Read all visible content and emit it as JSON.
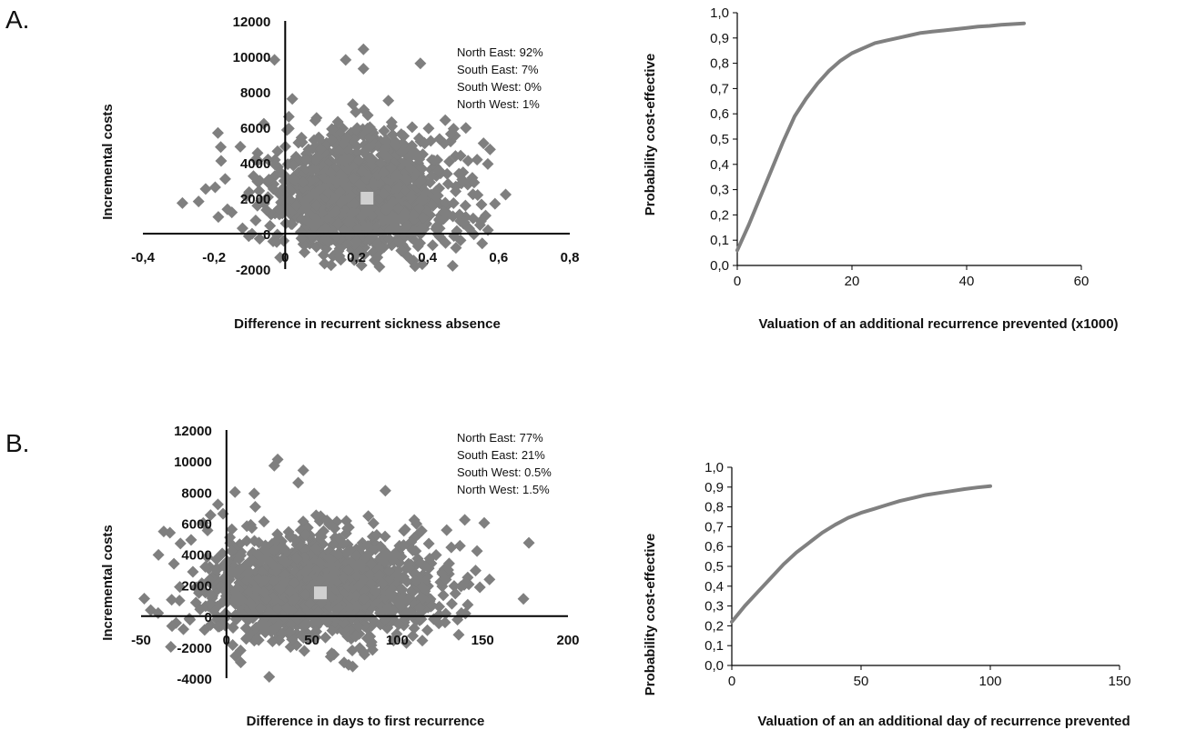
{
  "panels": [
    {
      "label": "A."
    },
    {
      "label": "B."
    }
  ],
  "colors": {
    "points": "#7f7f7f",
    "mean": "#d0d0d0",
    "curve": "#808080",
    "axis": "#000000"
  },
  "chart_data": [
    {
      "id": "A-scatter",
      "type": "scatter",
      "title": "",
      "xlabel": "Difference in recurrent sickness absence",
      "ylabel": "Incremental costs",
      "xlim": [
        -0.4,
        0.8
      ],
      "ylim": [
        -2000,
        12000
      ],
      "xticks": [
        "-0,4",
        "-0,2",
        "0",
        "0,2",
        "0,4",
        "0,6",
        "0,8"
      ],
      "xtick_values": [
        -0.4,
        -0.2,
        0,
        0.2,
        0.4,
        0.6,
        0.8
      ],
      "yticks": [
        "-2000",
        "0",
        "2000",
        "4000",
        "6000",
        "8000",
        "10000",
        "12000"
      ],
      "ytick_values": [
        -2000,
        0,
        2000,
        4000,
        6000,
        8000,
        10000,
        12000
      ],
      "cloud": {
        "center": [
          0.22,
          2200
        ],
        "spread": [
          0.13,
          1700
        ],
        "n": 1400
      },
      "outliers": [
        [
          -0.03,
          9800
        ],
        [
          0.22,
          10400
        ],
        [
          0.38,
          9600
        ],
        [
          0.17,
          9800
        ],
        [
          0.22,
          9300
        ],
        [
          0.02,
          7600
        ],
        [
          0.29,
          7500
        ],
        [
          -0.06,
          6200
        ],
        [
          0.45,
          6400
        ],
        [
          -0.18,
          4100
        ],
        [
          0.55,
          700
        ],
        [
          0.57,
          200
        ],
        [
          -0.15,
          1200
        ],
        [
          -0.12,
          300
        ],
        [
          0.48,
          -800
        ]
      ],
      "mean_point": [
        0.23,
        2000
      ],
      "legend": [
        "North East: 92%",
        "South East: 7%",
        "South West: 0%",
        "North West: 1%"
      ]
    },
    {
      "id": "A-ceac",
      "type": "line",
      "title": "",
      "xlabel": "Valuation of an additional recurrence prevented (x1000)",
      "ylabel": "Probability cost-effective",
      "xlim": [
        0,
        60
      ],
      "ylim": [
        0,
        1
      ],
      "xticks": [
        "0",
        "20",
        "40",
        "60"
      ],
      "xtick_values": [
        0,
        20,
        40,
        60
      ],
      "yticks": [
        "0,0",
        "0,1",
        "0,2",
        "0,3",
        "0,4",
        "0,5",
        "0,6",
        "0,7",
        "0,8",
        "0,9",
        "1,0"
      ],
      "ytick_values": [
        0,
        0.1,
        0.2,
        0.3,
        0.4,
        0.5,
        0.6,
        0.7,
        0.8,
        0.9,
        1.0
      ],
      "x": [
        0,
        2,
        4,
        6,
        8,
        10,
        12,
        14,
        16,
        18,
        20,
        22,
        24,
        26,
        28,
        30,
        32,
        34,
        36,
        38,
        40,
        42,
        44,
        46,
        48,
        50
      ],
      "y": [
        0.06,
        0.16,
        0.27,
        0.38,
        0.49,
        0.59,
        0.66,
        0.72,
        0.77,
        0.81,
        0.84,
        0.86,
        0.88,
        0.89,
        0.9,
        0.91,
        0.92,
        0.925,
        0.93,
        0.935,
        0.94,
        0.945,
        0.948,
        0.952,
        0.955,
        0.958
      ]
    },
    {
      "id": "B-scatter",
      "type": "scatter",
      "title": "",
      "xlabel": "Difference in days to first recurrence",
      "ylabel": "Incremental costs",
      "xlim": [
        -50,
        200
      ],
      "ylim": [
        -4000,
        12000
      ],
      "xticks": [
        "-50",
        "0",
        "50",
        "100",
        "150",
        "200"
      ],
      "xtick_values": [
        -50,
        0,
        50,
        100,
        150,
        200
      ],
      "yticks": [
        "-4000",
        "-2000",
        "0",
        "2000",
        "4000",
        "6000",
        "8000",
        "10000",
        "12000"
      ],
      "ytick_values": [
        -4000,
        -2000,
        0,
        2000,
        4000,
        6000,
        8000,
        10000,
        12000
      ],
      "cloud": {
        "center": [
          57,
          1900
        ],
        "spread": [
          36,
          1700
        ],
        "n": 1400
      },
      "outliers": [
        [
          30,
          10100
        ],
        [
          28,
          9700
        ],
        [
          45,
          9400
        ],
        [
          42,
          8600
        ],
        [
          -5,
          7200
        ],
        [
          5,
          8000
        ],
        [
          -40,
          200
        ],
        [
          110,
          6200
        ],
        [
          -2,
          6600
        ],
        [
          132,
          800
        ],
        [
          128,
          -400
        ],
        [
          136,
          -1200
        ],
        [
          12,
          -1400
        ]
      ],
      "mean_point": [
        55,
        1500
      ],
      "legend": [
        "North East: 77%",
        "South East: 21%",
        "South West: 0.5%",
        "North West: 1.5%"
      ]
    },
    {
      "id": "B-ceac",
      "type": "line",
      "title": "",
      "xlabel": "Valuation of an an additional day of recurrence prevented",
      "ylabel": "Probability cost-effective",
      "xlim": [
        0,
        150
      ],
      "ylim": [
        0,
        1
      ],
      "xticks": [
        "0",
        "50",
        "100",
        "150"
      ],
      "xtick_values": [
        0,
        50,
        100,
        150
      ],
      "yticks": [
        "0,0",
        "0,1",
        "0,2",
        "0,3",
        "0,4",
        "0,5",
        "0,6",
        "0,7",
        "0,8",
        "0,9",
        "1,0"
      ],
      "ytick_values": [
        0,
        0.1,
        0.2,
        0.3,
        0.4,
        0.5,
        0.6,
        0.7,
        0.8,
        0.9,
        1.0
      ],
      "x": [
        0,
        5,
        10,
        15,
        20,
        25,
        30,
        35,
        40,
        45,
        50,
        55,
        60,
        65,
        70,
        75,
        80,
        85,
        90,
        95,
        100
      ],
      "y": [
        0.22,
        0.3,
        0.37,
        0.44,
        0.51,
        0.57,
        0.62,
        0.67,
        0.71,
        0.745,
        0.77,
        0.79,
        0.81,
        0.83,
        0.845,
        0.86,
        0.87,
        0.88,
        0.89,
        0.898,
        0.905
      ]
    }
  ]
}
